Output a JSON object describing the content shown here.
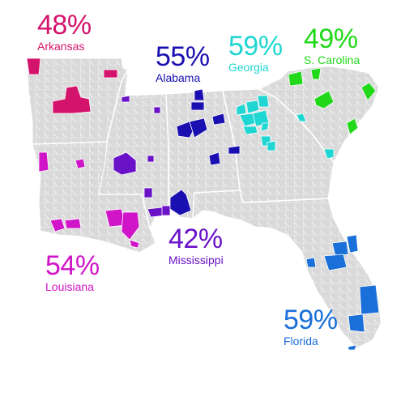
{
  "states": [
    {
      "id": "arkansas",
      "percent": "48%",
      "name": "Arkansas",
      "color": "#d4146c"
    },
    {
      "id": "alabama",
      "percent": "55%",
      "name": "Alabama",
      "color": "#1a0fb0"
    },
    {
      "id": "georgia",
      "percent": "59%",
      "name": "Georgia",
      "color": "#1fd6d2"
    },
    {
      "id": "s-carolina",
      "percent": "49%",
      "name": "S. Carolina",
      "color": "#22d81a"
    },
    {
      "id": "louisiana",
      "percent": "54%",
      "name": "Louisiana",
      "color": "#d015c8"
    },
    {
      "id": "mississippi",
      "percent": "42%",
      "name": "Mississippi",
      "color": "#6a12c8"
    },
    {
      "id": "florida",
      "percent": "59%",
      "name": "Florida",
      "color": "#1a6fd8"
    }
  ],
  "base_color": "#d9d9d9",
  "border_color": "#ffffff"
}
